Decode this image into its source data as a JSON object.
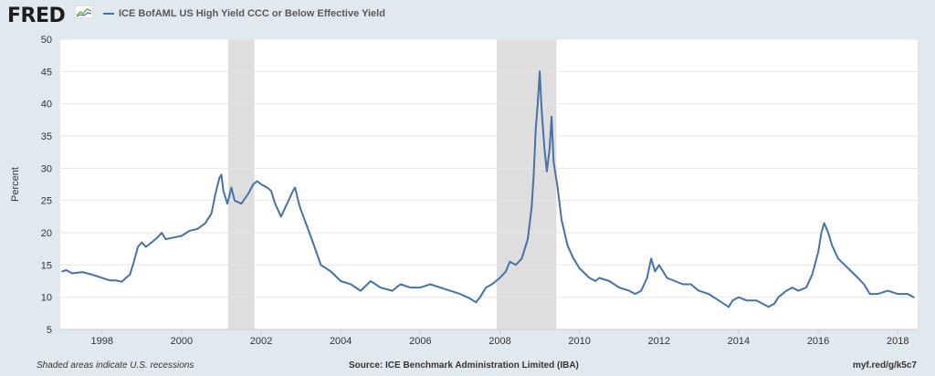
{
  "header": {
    "logo_text": "FRED",
    "logo_icon": "line-graph-icon"
  },
  "footer": {
    "note": "Shaded areas indicate U.S. recessions",
    "source": "Source: ICE Benchmark Administration Limited (IBA)",
    "link": "myf.red/g/k5c7"
  },
  "chart_data": {
    "type": "line",
    "ylabel": "Percent",
    "xlabel": "",
    "xlim": [
      1996.95,
      2018.5
    ],
    "ylim": [
      5,
      50
    ],
    "yticks": [
      5,
      10,
      15,
      20,
      25,
      30,
      35,
      40,
      45,
      50
    ],
    "xticks": [
      1998,
      2000,
      2002,
      2004,
      2006,
      2008,
      2010,
      2012,
      2014,
      2016,
      2018
    ],
    "grid": "horizontal",
    "legend_position": "top-left",
    "recessions": [
      [
        2001.17,
        2001.83
      ],
      [
        2007.92,
        2009.42
      ]
    ],
    "colors": {
      "line": "#4572a7",
      "recession": "#dedede",
      "plot_bg": "#ffffff"
    },
    "series": [
      {
        "name": "ICE BofAML US High Yield CCC or Below Effective Yield",
        "points": [
          [
            1997.0,
            14.0
          ],
          [
            1997.1,
            14.2
          ],
          [
            1997.25,
            13.7
          ],
          [
            1997.5,
            13.9
          ],
          [
            1997.75,
            13.5
          ],
          [
            1998.0,
            13.0
          ],
          [
            1998.2,
            12.6
          ],
          [
            1998.35,
            12.6
          ],
          [
            1998.5,
            12.4
          ],
          [
            1998.6,
            13.0
          ],
          [
            1998.7,
            13.5
          ],
          [
            1998.8,
            15.5
          ],
          [
            1998.9,
            17.8
          ],
          [
            1999.0,
            18.5
          ],
          [
            1999.1,
            17.8
          ],
          [
            1999.25,
            18.5
          ],
          [
            1999.4,
            19.3
          ],
          [
            1999.5,
            20.0
          ],
          [
            1999.6,
            19.0
          ],
          [
            1999.75,
            19.2
          ],
          [
            2000.0,
            19.5
          ],
          [
            2000.2,
            20.3
          ],
          [
            2000.4,
            20.6
          ],
          [
            2000.6,
            21.5
          ],
          [
            2000.75,
            23.0
          ],
          [
            2000.85,
            26.0
          ],
          [
            2000.95,
            28.5
          ],
          [
            2001.0,
            29.0
          ],
          [
            2001.05,
            26.5
          ],
          [
            2001.15,
            24.5
          ],
          [
            2001.25,
            27.0
          ],
          [
            2001.33,
            25.0
          ],
          [
            2001.5,
            24.5
          ],
          [
            2001.67,
            26.0
          ],
          [
            2001.8,
            27.5
          ],
          [
            2001.9,
            28.0
          ],
          [
            2002.0,
            27.5
          ],
          [
            2002.15,
            27.0
          ],
          [
            2002.25,
            26.5
          ],
          [
            2002.35,
            24.5
          ],
          [
            2002.5,
            22.5
          ],
          [
            2002.65,
            24.5
          ],
          [
            2002.8,
            26.5
          ],
          [
            2002.85,
            27.0
          ],
          [
            2002.95,
            24.5
          ],
          [
            2003.0,
            23.5
          ],
          [
            2003.15,
            21.0
          ],
          [
            2003.3,
            18.5
          ],
          [
            2003.5,
            15.0
          ],
          [
            2003.75,
            14.0
          ],
          [
            2004.0,
            12.5
          ],
          [
            2004.25,
            12.0
          ],
          [
            2004.5,
            11.0
          ],
          [
            2004.75,
            12.5
          ],
          [
            2005.0,
            11.5
          ],
          [
            2005.3,
            11.0
          ],
          [
            2005.5,
            12.0
          ],
          [
            2005.75,
            11.5
          ],
          [
            2006.0,
            11.5
          ],
          [
            2006.25,
            12.0
          ],
          [
            2006.5,
            11.5
          ],
          [
            2006.75,
            11.0
          ],
          [
            2007.0,
            10.5
          ],
          [
            2007.25,
            9.8
          ],
          [
            2007.4,
            9.2
          ],
          [
            2007.5,
            10.0
          ],
          [
            2007.65,
            11.5
          ],
          [
            2007.8,
            12.0
          ],
          [
            2008.0,
            13.0
          ],
          [
            2008.15,
            14.0
          ],
          [
            2008.25,
            15.5
          ],
          [
            2008.4,
            15.0
          ],
          [
            2008.55,
            16.0
          ],
          [
            2008.7,
            19.0
          ],
          [
            2008.8,
            24.0
          ],
          [
            2008.85,
            29.0
          ],
          [
            2008.9,
            36.0
          ],
          [
            2008.95,
            40.0
          ],
          [
            2009.0,
            45.0
          ],
          [
            2009.05,
            39.0
          ],
          [
            2009.12,
            33.0
          ],
          [
            2009.18,
            29.5
          ],
          [
            2009.25,
            33.0
          ],
          [
            2009.3,
            38.0
          ],
          [
            2009.35,
            31.0
          ],
          [
            2009.45,
            27.0
          ],
          [
            2009.55,
            22.0
          ],
          [
            2009.7,
            18.0
          ],
          [
            2009.85,
            16.0
          ],
          [
            2010.0,
            14.5
          ],
          [
            2010.25,
            13.0
          ],
          [
            2010.4,
            12.5
          ],
          [
            2010.5,
            13.0
          ],
          [
            2010.75,
            12.5
          ],
          [
            2011.0,
            11.5
          ],
          [
            2011.25,
            11.0
          ],
          [
            2011.4,
            10.5
          ],
          [
            2011.55,
            11.0
          ],
          [
            2011.7,
            13.0
          ],
          [
            2011.8,
            16.0
          ],
          [
            2011.9,
            14.0
          ],
          [
            2012.0,
            15.0
          ],
          [
            2012.2,
            13.0
          ],
          [
            2012.4,
            12.5
          ],
          [
            2012.6,
            12.0
          ],
          [
            2012.8,
            12.0
          ],
          [
            2013.0,
            11.0
          ],
          [
            2013.25,
            10.5
          ],
          [
            2013.5,
            9.5
          ],
          [
            2013.75,
            8.5
          ],
          [
            2013.85,
            9.5
          ],
          [
            2014.0,
            10.0
          ],
          [
            2014.2,
            9.5
          ],
          [
            2014.45,
            9.5
          ],
          [
            2014.6,
            9.0
          ],
          [
            2014.75,
            8.5
          ],
          [
            2014.9,
            9.0
          ],
          [
            2015.0,
            10.0
          ],
          [
            2015.2,
            11.0
          ],
          [
            2015.35,
            11.5
          ],
          [
            2015.5,
            11.0
          ],
          [
            2015.7,
            11.5
          ],
          [
            2015.85,
            13.5
          ],
          [
            2016.0,
            17.0
          ],
          [
            2016.08,
            20.0
          ],
          [
            2016.15,
            21.5
          ],
          [
            2016.25,
            20.0
          ],
          [
            2016.35,
            18.0
          ],
          [
            2016.5,
            16.0
          ],
          [
            2016.75,
            14.5
          ],
          [
            2017.0,
            13.0
          ],
          [
            2017.15,
            12.0
          ],
          [
            2017.3,
            10.5
          ],
          [
            2017.5,
            10.5
          ],
          [
            2017.75,
            11.0
          ],
          [
            2018.0,
            10.5
          ],
          [
            2018.25,
            10.5
          ],
          [
            2018.4,
            10.0
          ]
        ]
      }
    ]
  }
}
